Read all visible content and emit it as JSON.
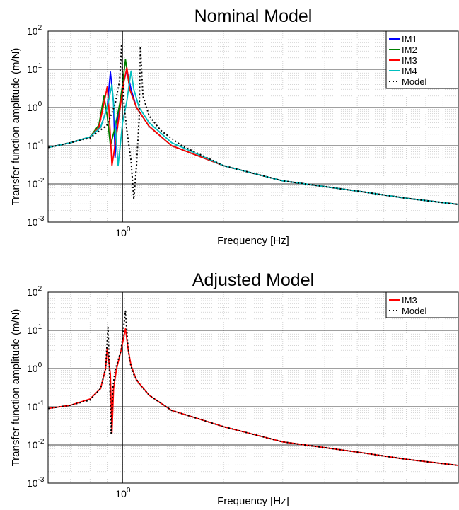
{
  "chart_data": [
    {
      "type": "line",
      "title": "Nominal Model",
      "xlabel": "Frequency [Hz]",
      "ylabel": "Transfer function amplitude (m/N)",
      "xscale": "log",
      "yscale": "log",
      "xlim": [
        0.6,
        10
      ],
      "ylim": [
        0.001,
        100
      ],
      "x_ticks": [
        {
          "mantissa": "10",
          "exp": "0",
          "value": 1
        }
      ],
      "y_ticks": [
        {
          "mantissa": "10",
          "exp": "-3",
          "value": 0.001
        },
        {
          "mantissa": "10",
          "exp": "-2",
          "value": 0.01
        },
        {
          "mantissa": "10",
          "exp": "-1",
          "value": 0.1
        },
        {
          "mantissa": "10",
          "exp": "0",
          "value": 1
        },
        {
          "mantissa": "10",
          "exp": "1",
          "value": 10
        },
        {
          "mantissa": "10",
          "exp": "2",
          "value": 100
        }
      ],
      "grid": true,
      "legend_position": "top-right",
      "series": [
        {
          "name": "IM1",
          "color": "#0000ff",
          "dash": "solid",
          "x": [
            0.6,
            0.7,
            0.8,
            0.86,
            0.9,
            0.92,
            0.94,
            0.95,
            0.96,
            0.98,
            1.0,
            1.03,
            1.06,
            1.1,
            1.2,
            1.4,
            2.0,
            3.0,
            5.0,
            7.0,
            10.0
          ],
          "y": [
            0.09,
            0.12,
            0.17,
            0.3,
            1.0,
            8.5,
            1.3,
            0.05,
            0.3,
            1.0,
            3.5,
            10.0,
            3.0,
            1.0,
            0.32,
            0.1,
            0.03,
            0.012,
            0.0065,
            0.0042,
            0.0029
          ]
        },
        {
          "name": "IM2",
          "color": "#008000",
          "dash": "solid",
          "x": [
            0.6,
            0.7,
            0.8,
            0.85,
            0.88,
            0.9,
            0.92,
            0.95,
            0.98,
            1.0,
            1.02,
            1.05,
            1.1,
            1.2,
            1.4,
            2.0,
            3.0,
            5.0,
            7.0,
            10.0
          ],
          "y": [
            0.09,
            0.12,
            0.17,
            0.35,
            2.0,
            0.6,
            0.1,
            0.3,
            1.2,
            4.0,
            18.0,
            3.0,
            1.0,
            0.32,
            0.1,
            0.03,
            0.012,
            0.0065,
            0.0042,
            0.0029
          ]
        },
        {
          "name": "IM3",
          "color": "#ff0000",
          "dash": "solid",
          "x": [
            0.6,
            0.7,
            0.8,
            0.85,
            0.88,
            0.9,
            0.91,
            0.93,
            0.96,
            0.99,
            1.01,
            1.03,
            1.05,
            1.1,
            1.2,
            1.4,
            2.0,
            3.0,
            5.0,
            7.0,
            10.0
          ],
          "y": [
            0.09,
            0.12,
            0.17,
            0.3,
            1.3,
            3.5,
            1.0,
            0.03,
            0.2,
            1.5,
            5.0,
            11.0,
            3.0,
            1.0,
            0.32,
            0.1,
            0.03,
            0.012,
            0.0065,
            0.0042,
            0.0029
          ]
        },
        {
          "name": "IM4",
          "color": "#00bfbf",
          "dash": "solid",
          "x": [
            0.6,
            0.7,
            0.8,
            0.86,
            0.9,
            0.93,
            0.95,
            0.97,
            1.0,
            1.03,
            1.06,
            1.08,
            1.12,
            1.2,
            1.4,
            2.0,
            3.0,
            5.0,
            7.0,
            10.0
          ],
          "y": [
            0.09,
            0.12,
            0.17,
            0.3,
            1.0,
            4.0,
            0.4,
            0.03,
            0.4,
            1.5,
            9.0,
            3.0,
            1.0,
            0.4,
            0.12,
            0.03,
            0.012,
            0.0065,
            0.0042,
            0.0029
          ]
        },
        {
          "name": "Model",
          "color": "#000000",
          "dash": "dotted",
          "x": [
            0.6,
            0.7,
            0.8,
            0.9,
            0.95,
            0.98,
            0.993,
            1.0,
            1.01,
            1.03,
            1.06,
            1.08,
            1.1,
            1.12,
            1.13,
            1.15,
            1.2,
            1.3,
            1.5,
            2.0,
            3.0,
            5.0,
            7.0,
            10.0
          ],
          "y": [
            0.09,
            0.12,
            0.16,
            0.35,
            1.2,
            5.0,
            45.0,
            5.0,
            1.2,
            0.25,
            0.04,
            0.004,
            0.03,
            0.5,
            40.0,
            2.0,
            0.6,
            0.25,
            0.1,
            0.03,
            0.012,
            0.0065,
            0.0042,
            0.0029
          ]
        }
      ]
    },
    {
      "type": "line",
      "title": "Adjusted Model",
      "xlabel": "Frequency [Hz]",
      "ylabel": "Transfer function amplitude (m/N)",
      "xscale": "log",
      "yscale": "log",
      "xlim": [
        0.6,
        10
      ],
      "ylim": [
        0.001,
        100
      ],
      "x_ticks": [
        {
          "mantissa": "10",
          "exp": "0",
          "value": 1
        }
      ],
      "y_ticks": [
        {
          "mantissa": "10",
          "exp": "-3",
          "value": 0.001
        },
        {
          "mantissa": "10",
          "exp": "-2",
          "value": 0.01
        },
        {
          "mantissa": "10",
          "exp": "-1",
          "value": 0.1
        },
        {
          "mantissa": "10",
          "exp": "0",
          "value": 1
        },
        {
          "mantissa": "10",
          "exp": "1",
          "value": 10
        },
        {
          "mantissa": "10",
          "exp": "2",
          "value": 100
        }
      ],
      "grid": true,
      "legend_position": "top-right",
      "series": [
        {
          "name": "IM3",
          "color": "#ff0000",
          "dash": "solid",
          "x": [
            0.6,
            0.7,
            0.8,
            0.86,
            0.89,
            0.9,
            0.92,
            0.93,
            0.94,
            0.96,
            0.99,
            1.02,
            1.04,
            1.06,
            1.1,
            1.2,
            1.4,
            2.0,
            3.0,
            5.0,
            7.0,
            10.0
          ],
          "y": [
            0.09,
            0.11,
            0.16,
            0.3,
            1.0,
            3.5,
            0.7,
            0.02,
            0.3,
            1.0,
            3.0,
            11.0,
            3.0,
            1.2,
            0.5,
            0.2,
            0.08,
            0.03,
            0.012,
            0.0065,
            0.0042,
            0.0029
          ]
        },
        {
          "name": "Model",
          "color": "#000000",
          "dash": "dotted",
          "x": [
            0.6,
            0.7,
            0.8,
            0.86,
            0.89,
            0.905,
            0.915,
            0.925,
            0.935,
            0.95,
            0.99,
            1.02,
            1.035,
            1.05,
            1.08,
            1.12,
            1.2,
            1.4,
            2.0,
            3.0,
            5.0,
            7.0,
            10.0
          ],
          "y": [
            0.09,
            0.11,
            0.15,
            0.3,
            1.0,
            12.0,
            0.6,
            0.02,
            0.3,
            0.9,
            3.0,
            32.0,
            5.0,
            1.5,
            0.7,
            0.4,
            0.2,
            0.08,
            0.03,
            0.012,
            0.0065,
            0.0042,
            0.0029
          ]
        }
      ]
    }
  ]
}
